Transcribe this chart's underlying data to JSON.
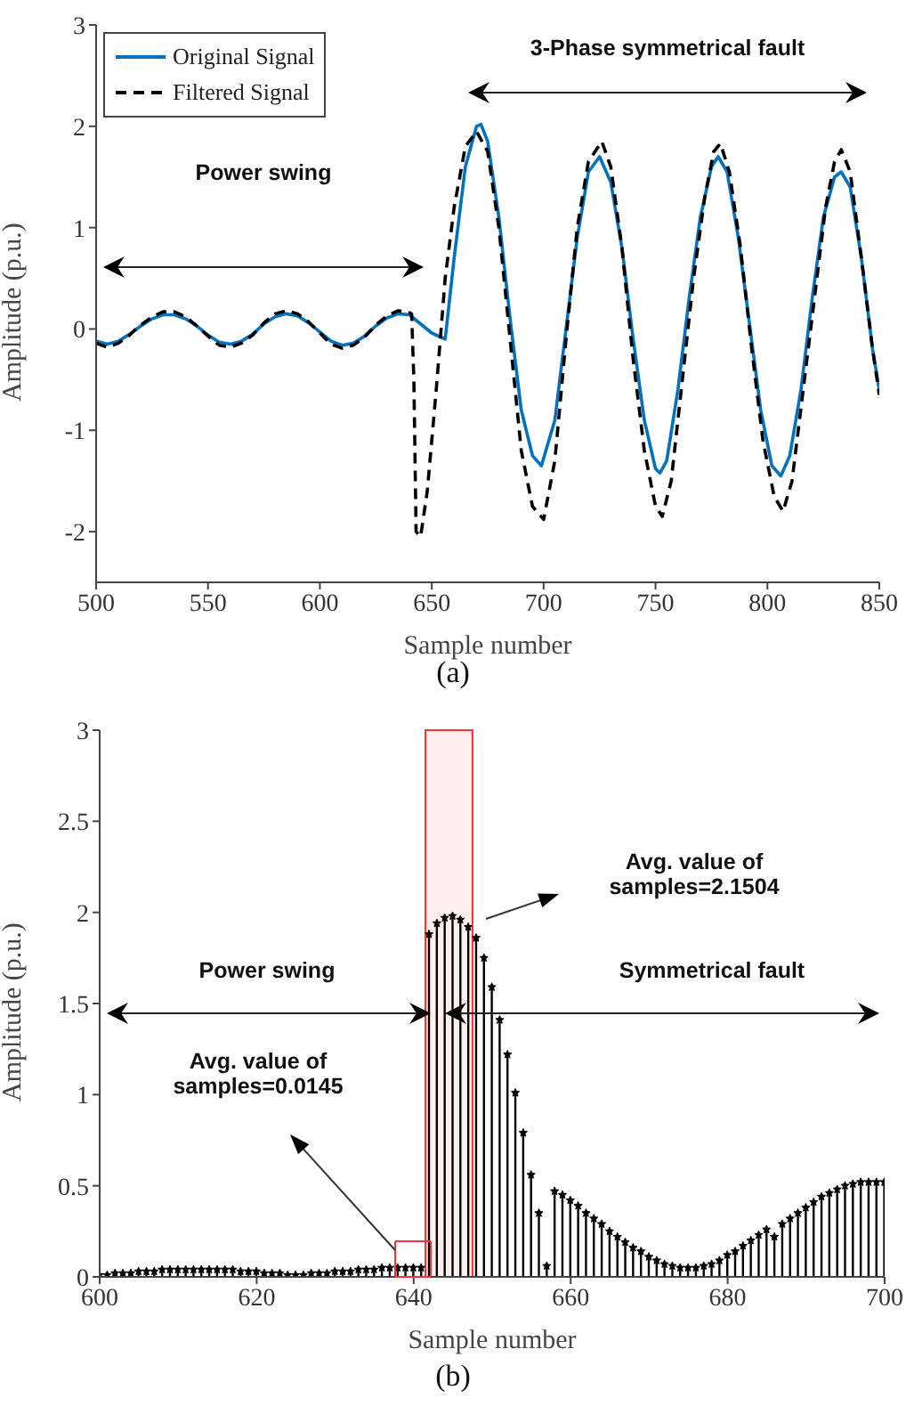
{
  "chart_data": [
    {
      "type": "line",
      "xlabel": "Sample number",
      "ylabel": "Amplitude (p.u.)",
      "xlim": [
        500,
        850
      ],
      "xticks": [
        500,
        550,
        600,
        650,
        700,
        750,
        800,
        850
      ],
      "ylim": [
        -2.5,
        3
      ],
      "yticks": [
        -2,
        -1,
        0,
        1,
        2,
        3
      ],
      "grid": false,
      "legend": "top left",
      "annotations": [
        "Power swing",
        "3-Phase symmetrical fault",
        "(a)"
      ],
      "series": [
        {
          "name": "Original Signal",
          "color": "#0072bd",
          "line_style": "solid",
          "x": [
            500,
            505,
            510,
            515,
            520,
            525,
            530,
            535,
            540,
            545,
            550,
            555,
            560,
            565,
            570,
            575,
            580,
            585,
            590,
            595,
            600,
            605,
            610,
            615,
            620,
            625,
            630,
            635,
            640,
            645,
            650,
            656,
            660,
            665,
            670,
            672,
            675,
            680,
            685,
            690,
            695,
            699,
            705,
            710,
            715,
            720,
            725,
            730,
            735,
            740,
            745,
            750,
            752,
            755,
            760,
            765,
            770,
            775,
            778,
            782,
            787,
            792,
            797,
            802,
            806,
            810,
            815,
            820,
            825,
            830,
            833,
            837,
            842,
            847,
            850
          ],
          "values": [
            -0.12,
            -0.15,
            -0.12,
            -0.05,
            0.03,
            0.1,
            0.14,
            0.14,
            0.1,
            0.03,
            -0.06,
            -0.13,
            -0.15,
            -0.12,
            -0.05,
            0.05,
            0.12,
            0.15,
            0.13,
            0.06,
            -0.03,
            -0.12,
            -0.16,
            -0.14,
            -0.07,
            0.03,
            0.11,
            0.15,
            0.14,
            0.05,
            -0.04,
            -0.1,
            0.7,
            1.6,
            2.0,
            2.02,
            1.85,
            1.1,
            0.1,
            -0.8,
            -1.25,
            -1.35,
            -0.9,
            0,
            0.9,
            1.55,
            1.7,
            1.45,
            0.8,
            -0.1,
            -0.9,
            -1.38,
            -1.42,
            -1.3,
            -0.6,
            0.3,
            1.1,
            1.6,
            1.7,
            1.55,
            0.9,
            0.05,
            -0.8,
            -1.35,
            -1.45,
            -1.25,
            -0.6,
            0.3,
            1.1,
            1.5,
            1.55,
            1.4,
            0.7,
            -0.2,
            -0.6
          ]
        },
        {
          "name": "Filtered Signal",
          "color": "#000000",
          "line_style": "dashed",
          "x": [
            500,
            505,
            510,
            515,
            520,
            525,
            530,
            535,
            540,
            545,
            550,
            555,
            560,
            565,
            570,
            575,
            580,
            585,
            590,
            595,
            600,
            605,
            610,
            615,
            620,
            625,
            630,
            635,
            640,
            641,
            642,
            643,
            645,
            648,
            652,
            656,
            660,
            665,
            670,
            675,
            680,
            685,
            690,
            695,
            700,
            705,
            710,
            715,
            720,
            726,
            730,
            735,
            740,
            745,
            750,
            753,
            757,
            762,
            767,
            772,
            776,
            779,
            783,
            788,
            793,
            798,
            803,
            807,
            811,
            816,
            821,
            826,
            830,
            833,
            837,
            842,
            847,
            850
          ],
          "values": [
            -0.14,
            -0.18,
            -0.14,
            -0.06,
            0.04,
            0.12,
            0.17,
            0.17,
            0.12,
            0.03,
            -0.07,
            -0.16,
            -0.18,
            -0.14,
            -0.06,
            0.06,
            0.15,
            0.18,
            0.15,
            0.07,
            -0.04,
            -0.15,
            -0.19,
            -0.16,
            -0.08,
            0.04,
            0.13,
            0.18,
            0.16,
            0.15,
            -0.5,
            -2.0,
            -2.05,
            -1.6,
            -0.6,
            0.5,
            1.2,
            1.8,
            1.95,
            1.75,
            1.0,
            -0.1,
            -1.2,
            -1.75,
            -1.88,
            -1.3,
            -0.1,
            1.0,
            1.65,
            1.85,
            1.6,
            0.8,
            -0.3,
            -1.2,
            -1.75,
            -1.85,
            -1.5,
            -0.5,
            0.5,
            1.3,
            1.75,
            1.83,
            1.55,
            0.8,
            -0.2,
            -1.1,
            -1.65,
            -1.8,
            -1.5,
            -0.6,
            0.3,
            1.2,
            1.65,
            1.77,
            1.55,
            0.7,
            -0.2,
            -0.65
          ]
        }
      ]
    },
    {
      "type": "lollipop",
      "xlabel": "Sample number",
      "ylabel": "Amplitude (p.u.)",
      "xlim": [
        600,
        700
      ],
      "xticks": [
        600,
        620,
        640,
        660,
        680,
        700
      ],
      "ylim": [
        0,
        3
      ],
      "yticks": [
        0,
        0.5,
        1,
        1.5,
        2,
        2.5,
        3
      ],
      "grid": false,
      "legend": false,
      "marker": "star",
      "bands": [
        {
          "axis": "x",
          "from": 641.5,
          "to": 647.5,
          "color": "#ff3030"
        }
      ],
      "annotations": [
        "Power swing",
        "Symmetrical fault",
        "Avg. value of samples=0.0145",
        "Avg. value of samples=2.1504",
        "(b)"
      ],
      "series": [
        {
          "color": "#000000",
          "x": [
            600,
            601,
            602,
            603,
            604,
            605,
            606,
            607,
            608,
            609,
            610,
            611,
            612,
            613,
            614,
            615,
            616,
            617,
            618,
            619,
            620,
            621,
            622,
            623,
            624,
            625,
            626,
            627,
            628,
            629,
            630,
            631,
            632,
            633,
            634,
            635,
            636,
            637,
            638,
            639,
            640,
            641,
            642,
            643,
            644,
            645,
            646,
            647,
            648,
            649,
            650,
            651,
            652,
            653,
            654,
            655,
            656,
            657,
            658,
            659,
            660,
            661,
            662,
            663,
            664,
            665,
            666,
            667,
            668,
            669,
            670,
            671,
            672,
            673,
            674,
            675,
            676,
            677,
            678,
            679,
            680,
            681,
            682,
            683,
            684,
            685,
            686,
            687,
            688,
            689,
            690,
            691,
            692,
            693,
            694,
            695,
            696,
            697,
            698,
            699,
            700
          ],
          "values": [
            0.01,
            0.01,
            0.02,
            0.02,
            0.02,
            0.03,
            0.03,
            0.03,
            0.04,
            0.04,
            0.04,
            0.04,
            0.04,
            0.04,
            0.04,
            0.04,
            0.04,
            0.04,
            0.03,
            0.03,
            0.03,
            0.02,
            0.02,
            0.02,
            0.01,
            0.01,
            0.01,
            0.02,
            0.02,
            0.02,
            0.03,
            0.03,
            0.03,
            0.04,
            0.04,
            0.04,
            0.05,
            0.05,
            0.05,
            0.05,
            0.05,
            0.05,
            1.88,
            1.94,
            1.97,
            1.98,
            1.96,
            1.92,
            1.86,
            1.75,
            1.59,
            1.41,
            1.22,
            1.01,
            0.79,
            0.56,
            0.35,
            0.06,
            0.47,
            0.45,
            0.42,
            0.39,
            0.35,
            0.32,
            0.29,
            0.25,
            0.22,
            0.19,
            0.16,
            0.14,
            0.11,
            0.09,
            0.07,
            0.06,
            0.05,
            0.05,
            0.05,
            0.06,
            0.07,
            0.09,
            0.12,
            0.14,
            0.17,
            0.2,
            0.23,
            0.26,
            0.22,
            0.29,
            0.32,
            0.35,
            0.38,
            0.41,
            0.44,
            0.46,
            0.48,
            0.5,
            0.51,
            0.52,
            0.52,
            0.52,
            0.52
          ]
        }
      ]
    }
  ]
}
